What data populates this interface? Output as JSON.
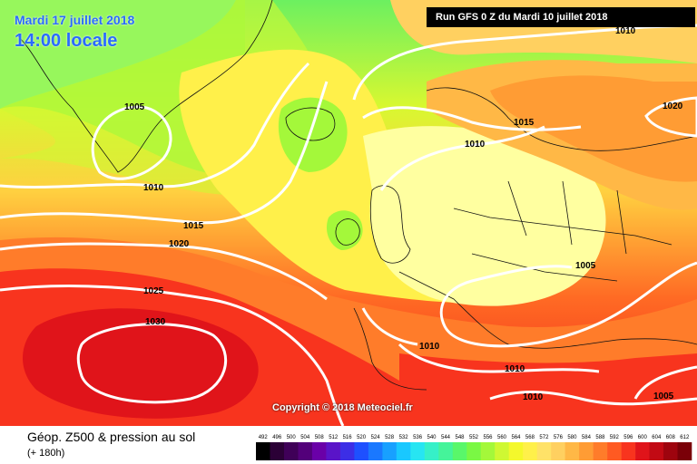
{
  "header": {
    "date": "Mardi 17 juillet 2018",
    "time": "14:00 locale",
    "run": "Run GFS 0 Z du Mardi 10 juillet 2018"
  },
  "copyright": "Copyright © 2018 Meteociel.fr",
  "legend": {
    "title": "Géop. Z500 & pression au sol",
    "subtitle": "(+ 180h)",
    "scale_values": [
      "492",
      "496",
      "500",
      "504",
      "508",
      "512",
      "516",
      "520",
      "524",
      "528",
      "532",
      "536",
      "540",
      "544",
      "548",
      "552",
      "556",
      "560",
      "564",
      "568",
      "572",
      "576",
      "580",
      "584",
      "588",
      "592",
      "596",
      "600",
      "604",
      "608",
      "612"
    ],
    "scale_colors": [
      "#000000",
      "#2b0036",
      "#3f0058",
      "#53007a",
      "#6a00a8",
      "#5a14c8",
      "#3c2ee6",
      "#1e50ff",
      "#1a78ff",
      "#18a0ff",
      "#19c8ff",
      "#27e5f2",
      "#36f0c8",
      "#45f49a",
      "#59f76a",
      "#7af844",
      "#a4f83a",
      "#cff833",
      "#f4f82c",
      "#fff04a",
      "#ffe268",
      "#ffd060",
      "#ffb846",
      "#ff9c34",
      "#ff7c2a",
      "#ff5a22",
      "#f8341e",
      "#e0141a",
      "#c20a14",
      "#9e040e",
      "#7a0008"
    ]
  },
  "isobars": [
    {
      "label": "1010"
    },
    {
      "label": "1005"
    },
    {
      "label": "1015"
    },
    {
      "label": "1010"
    },
    {
      "label": "1020"
    },
    {
      "label": "1010"
    },
    {
      "label": "1015"
    },
    {
      "label": "1020"
    },
    {
      "label": "1005"
    },
    {
      "label": "1025"
    },
    {
      "label": "1030"
    },
    {
      "label": "1010"
    },
    {
      "label": "1010"
    },
    {
      "label": "1010"
    },
    {
      "label": "1005"
    }
  ]
}
